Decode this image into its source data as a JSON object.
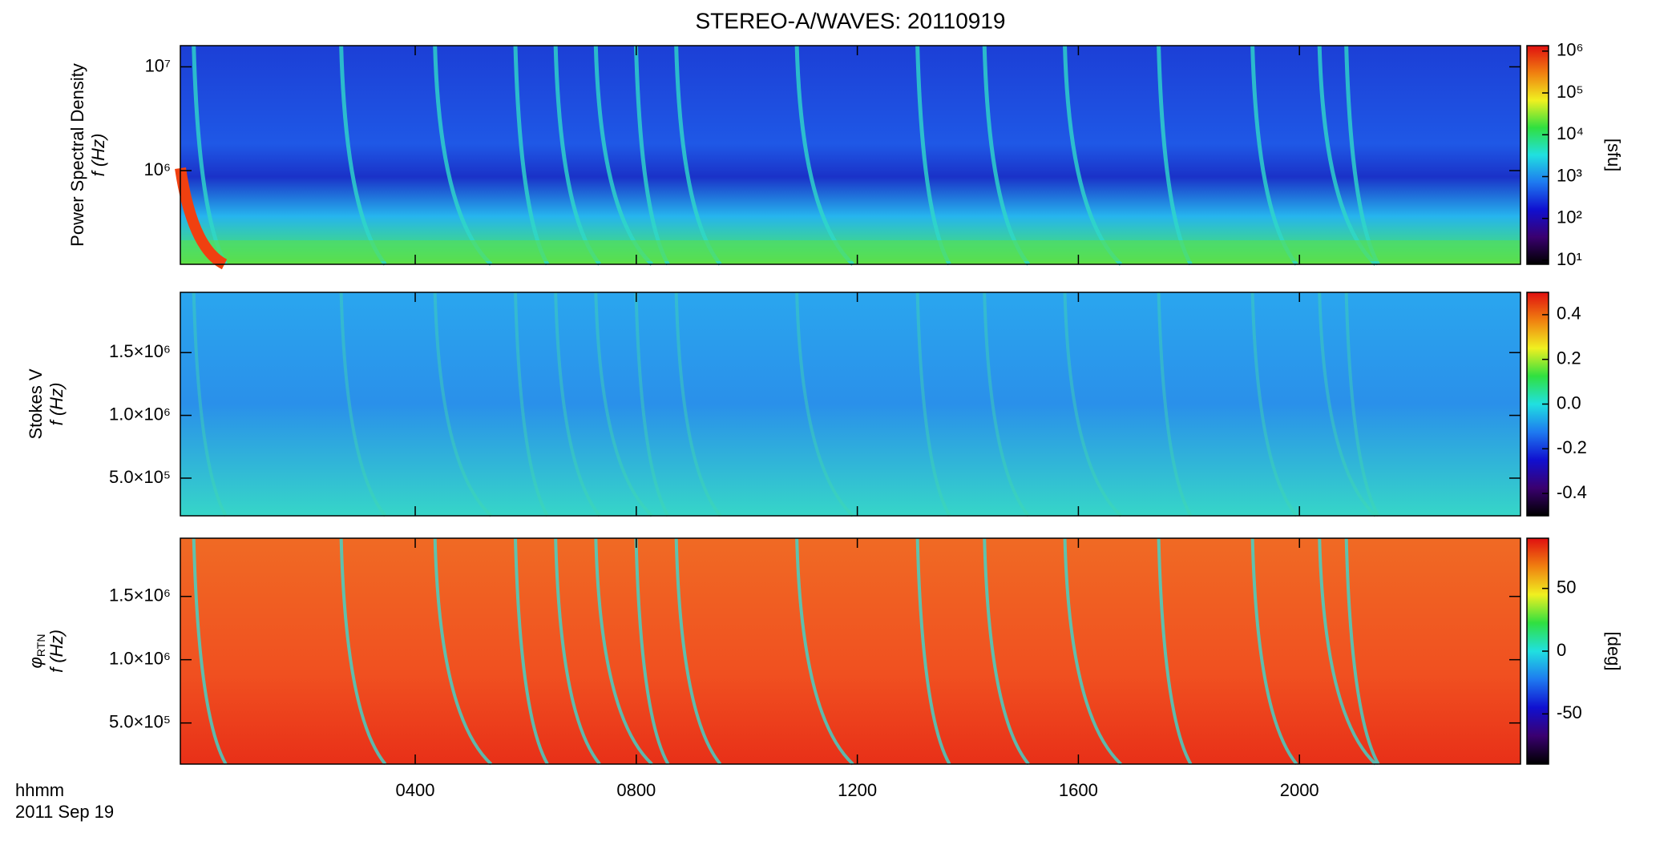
{
  "chart_data": [
    {
      "type": "heatmap",
      "title": "STEREO-A/WAVES: 20110919",
      "ylabel": "Power Spectral Density",
      "ylabel2": "f (Hz)",
      "ylog": true,
      "ylim": [
        125000,
        16000000
      ],
      "yticks": [
        {
          "value": 1000000,
          "label": "10⁶"
        },
        {
          "value": 10000000,
          "label": "10⁷"
        }
      ],
      "colorbar_label": "[sfu]",
      "colorbar_log": true,
      "colorbar_lim": [
        8,
        1350000
      ],
      "colorbar_ticks": [
        {
          "value": 10,
          "label": "10¹"
        },
        {
          "value": 100,
          "label": "10²"
        },
        {
          "value": 1000,
          "label": "10³"
        },
        {
          "value": 10000,
          "label": "10⁴"
        },
        {
          "value": 100000,
          "label": "10⁵"
        },
        {
          "value": 1000000,
          "label": "10⁶"
        }
      ],
      "colormap": [
        "#000000",
        "#3a0070",
        "#1010d0",
        "#1e7af0",
        "#20e0e0",
        "#30e040",
        "#f0f020",
        "#f08010",
        "#e01010"
      ]
    },
    {
      "type": "heatmap",
      "ylabel": "Stokes V",
      "ylabel2": "f (Hz)",
      "ylog": false,
      "ylim": [
        200000,
        1980000
      ],
      "yticks": [
        {
          "value": 500000,
          "label": "5.0×10⁵"
        },
        {
          "value": 1000000,
          "label": "1.0×10⁶"
        },
        {
          "value": 1500000,
          "label": "1.5×10⁶"
        }
      ],
      "colorbar_log": false,
      "colorbar_lim": [
        -0.5,
        0.5
      ],
      "colorbar_ticks": [
        -0.4,
        -0.2,
        {
          "value": 0,
          "label": "0.0"
        },
        0.2,
        0.4
      ],
      "colormap": [
        "#000000",
        "#3a0070",
        "#1010d0",
        "#1e7af0",
        "#20e0e0",
        "#30e040",
        "#f0f020",
        "#f08010",
        "#e01010"
      ]
    },
    {
      "type": "heatmap",
      "ylabel_symbol": "φ",
      "ylabel_subscript": "RTN",
      "ylabel2": "f (Hz)",
      "ylog": false,
      "ylim": [
        175000,
        1960000
      ],
      "yticks": [
        {
          "value": 500000,
          "label": "5.0×10⁵"
        },
        {
          "value": 1000000,
          "label": "1.0×10⁶"
        },
        {
          "value": 1500000,
          "label": "1.5×10⁶"
        }
      ],
      "colorbar_label": "[deg]",
      "colorbar_log": false,
      "colorbar_lim": [
        -90,
        90
      ],
      "colorbar_ticks": [
        -50,
        0,
        50
      ],
      "colormap": [
        "#000000",
        "#3a0070",
        "#1010d0",
        "#1e7af0",
        "#20e0e0",
        "#30e040",
        "#f0f020",
        "#f08010",
        "#e01010"
      ],
      "xlabel": "hhmm",
      "date": "2011 Sep 19",
      "xlim": [
        -0.25,
        24
      ],
      "xticks": [
        {
          "value": 4,
          "label": "0400"
        },
        {
          "value": 8,
          "label": "0800"
        },
        {
          "value": 12,
          "label": "1200"
        },
        {
          "value": 16,
          "label": "1600"
        },
        {
          "value": 20,
          "label": "2000"
        }
      ]
    }
  ]
}
